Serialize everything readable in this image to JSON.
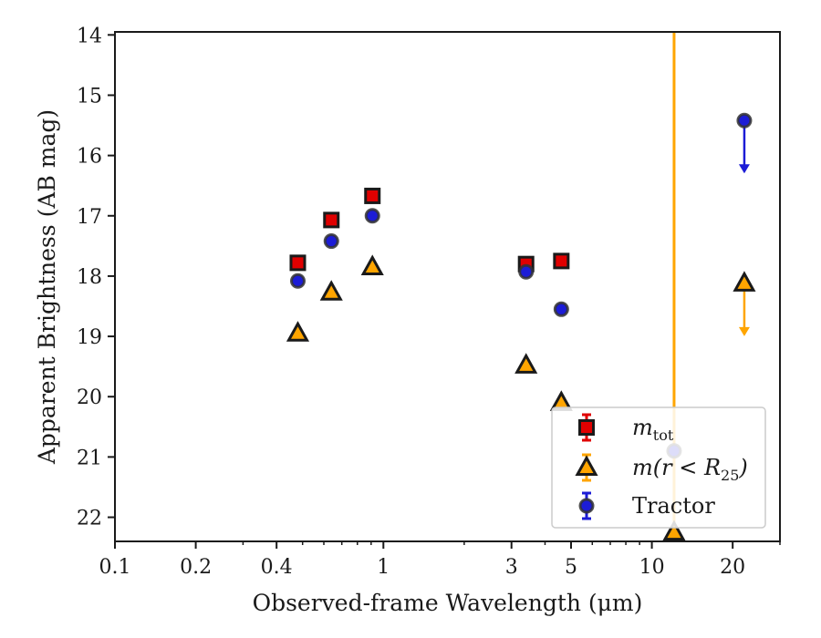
{
  "chart_data": {
    "type": "scatter",
    "xlabel": "Observed-frame Wavelength (μm)",
    "ylabel": "Apparent Brightness (AB mag)",
    "xscale": "log",
    "xlim": [
      0.1,
      30
    ],
    "ylim": [
      22.4,
      13.95
    ],
    "y_inverted": true,
    "grid": false,
    "legend_position": "lower-right",
    "x_ticks": [
      {
        "value": 0.1,
        "label": "0.1"
      },
      {
        "value": 0.2,
        "label": "0.2"
      },
      {
        "value": 0.4,
        "label": "0.4"
      },
      {
        "value": 1,
        "label": "1"
      },
      {
        "value": 3,
        "label": "3"
      },
      {
        "value": 5,
        "label": "5"
      },
      {
        "value": 10,
        "label": "10"
      },
      {
        "value": 20,
        "label": "20"
      }
    ],
    "y_ticks": [
      {
        "value": 14,
        "label": "14"
      },
      {
        "value": 15,
        "label": "15"
      },
      {
        "value": 16,
        "label": "16"
      },
      {
        "value": 17,
        "label": "17"
      },
      {
        "value": 18,
        "label": "18"
      },
      {
        "value": 19,
        "label": "19"
      },
      {
        "value": 20,
        "label": "20"
      },
      {
        "value": 21,
        "label": "21"
      },
      {
        "value": 22,
        "label": "22"
      }
    ],
    "series": [
      {
        "name": "m_tot",
        "legend_main": "m",
        "legend_sub": "tot",
        "marker": "square",
        "color": "#e00000",
        "edge": "#1a1a1a",
        "points": [
          {
            "x": 0.48,
            "y": 17.78
          },
          {
            "x": 0.64,
            "y": 17.07
          },
          {
            "x": 0.91,
            "y": 16.67
          },
          {
            "x": 3.4,
            "y": 17.8
          },
          {
            "x": 4.6,
            "y": 17.75
          }
        ]
      },
      {
        "name": "m(r < R25)",
        "legend_main": "m(r < R",
        "legend_sub": "25",
        "legend_end": ")",
        "marker": "triangle",
        "color": "#ffa500",
        "edge": "#1a1a1a",
        "points": [
          {
            "x": 0.48,
            "y": 18.95
          },
          {
            "x": 0.64,
            "y": 18.27
          },
          {
            "x": 0.91,
            "y": 17.85
          },
          {
            "x": 3.4,
            "y": 19.48
          },
          {
            "x": 4.6,
            "y": 20.1
          },
          {
            "x": 12.1,
            "y": 22.25,
            "yerr_up": 8.3
          },
          {
            "x": 22.1,
            "y": 18.12,
            "upper_limit": true
          }
        ]
      },
      {
        "name": "Tractor",
        "marker": "circle",
        "color": "#1c1cd6",
        "edge": "#333333",
        "points": [
          {
            "x": 0.48,
            "y": 18.08
          },
          {
            "x": 0.64,
            "y": 17.42
          },
          {
            "x": 0.91,
            "y": 17.0
          },
          {
            "x": 3.4,
            "y": 17.93
          },
          {
            "x": 4.6,
            "y": 18.55
          },
          {
            "x": 12.1,
            "y": 20.9
          },
          {
            "x": 22.1,
            "y": 15.42,
            "upper_limit": true
          }
        ]
      }
    ]
  }
}
